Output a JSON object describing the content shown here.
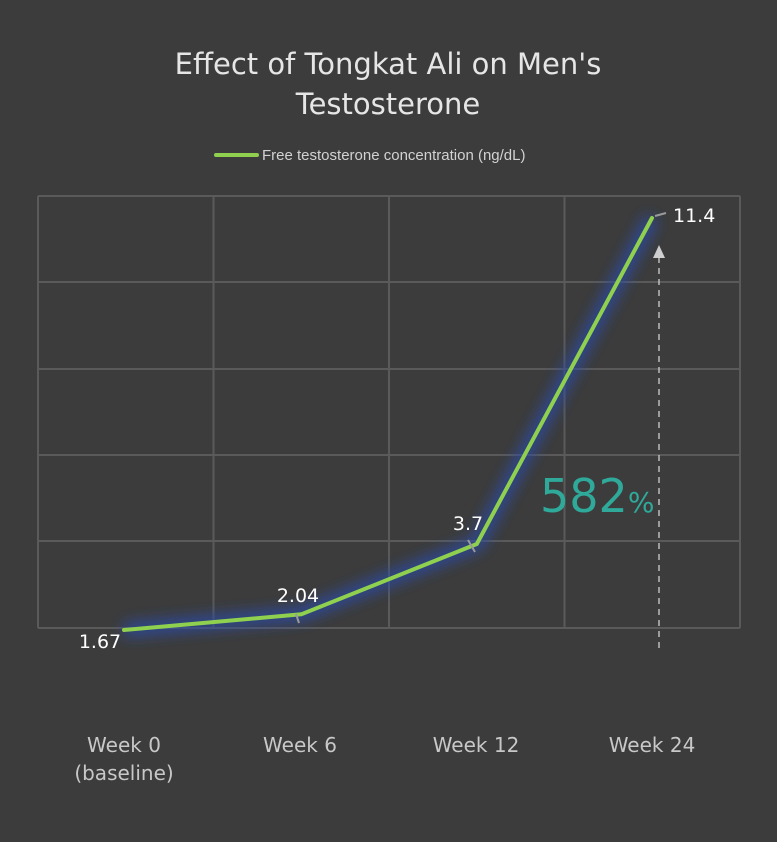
{
  "chart_data": {
    "type": "line",
    "title_lines": [
      "Effect of Tongkat Ali on Men's",
      "Testosterone"
    ],
    "categories": [
      "Week 0\n(baseline)",
      "Week 6",
      "Week 12",
      "Week 24"
    ],
    "series": [
      {
        "name": "Free testosterone concentration (ng/dL)",
        "values": [
          1.67,
          2.04,
          3.7,
          11.4
        ],
        "labels": [
          "1.67",
          "2.04",
          "3.7",
          "11.4"
        ]
      }
    ],
    "ylim": [
      0,
      12
    ],
    "grid": true,
    "legend": "top-center",
    "annotation": {
      "value": "582",
      "unit": "%"
    },
    "colors": {
      "background": "#3c3c3c",
      "line": "#8fd14f",
      "glow": "#2a4aa8",
      "grid": "#5a5a5a",
      "annotation": "#2fa99a"
    }
  }
}
